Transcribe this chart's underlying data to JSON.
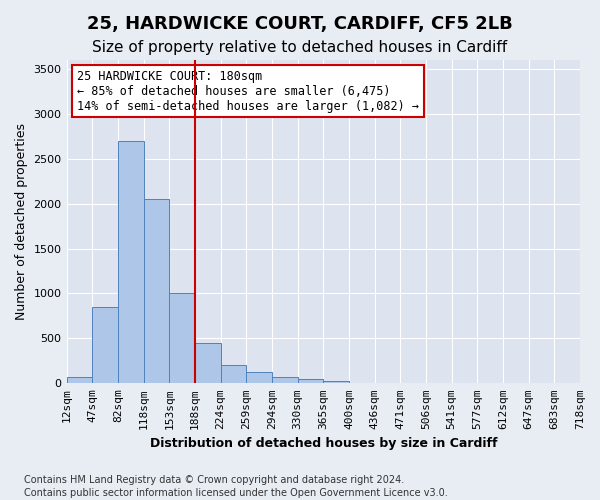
{
  "title": "25, HARDWICKE COURT, CARDIFF, CF5 2LB",
  "subtitle": "Size of property relative to detached houses in Cardiff",
  "xlabel": "Distribution of detached houses by size in Cardiff",
  "ylabel": "Number of detached properties",
  "footnote1": "Contains HM Land Registry data © Crown copyright and database right 2024.",
  "footnote2": "Contains public sector information licensed under the Open Government Licence v3.0.",
  "annotation_line1": "25 HARDWICKE COURT: 180sqm",
  "annotation_line2": "← 85% of detached houses are smaller (6,475)",
  "annotation_line3": "14% of semi-detached houses are larger (1,082) →",
  "bin_labels": [
    "12sqm",
    "47sqm",
    "82sqm",
    "118sqm",
    "153sqm",
    "188sqm",
    "224sqm",
    "259sqm",
    "294sqm",
    "330sqm",
    "365sqm",
    "400sqm",
    "436sqm",
    "471sqm",
    "506sqm",
    "541sqm",
    "577sqm",
    "612sqm",
    "647sqm",
    "683sqm",
    "718sqm"
  ],
  "bar_values": [
    75,
    850,
    2700,
    2050,
    1000,
    450,
    200,
    130,
    70,
    50,
    30,
    0,
    0,
    0,
    0,
    0,
    0,
    0,
    0,
    0
  ],
  "bar_color": "#aec6e8",
  "bar_edge_color": "#4f81bd",
  "redline_x": 5,
  "redline_color": "#cc0000",
  "ylim": [
    0,
    3600
  ],
  "yticks": [
    0,
    500,
    1000,
    1500,
    2000,
    2500,
    3000,
    3500
  ],
  "background_color": "#e8edf4",
  "plot_bg_color": "#dde4f0",
  "grid_color": "#ffffff",
  "title_fontsize": 13,
  "subtitle_fontsize": 11,
  "axis_label_fontsize": 9,
  "tick_fontsize": 8,
  "annotation_fontsize": 8.5,
  "footnote_fontsize": 7
}
